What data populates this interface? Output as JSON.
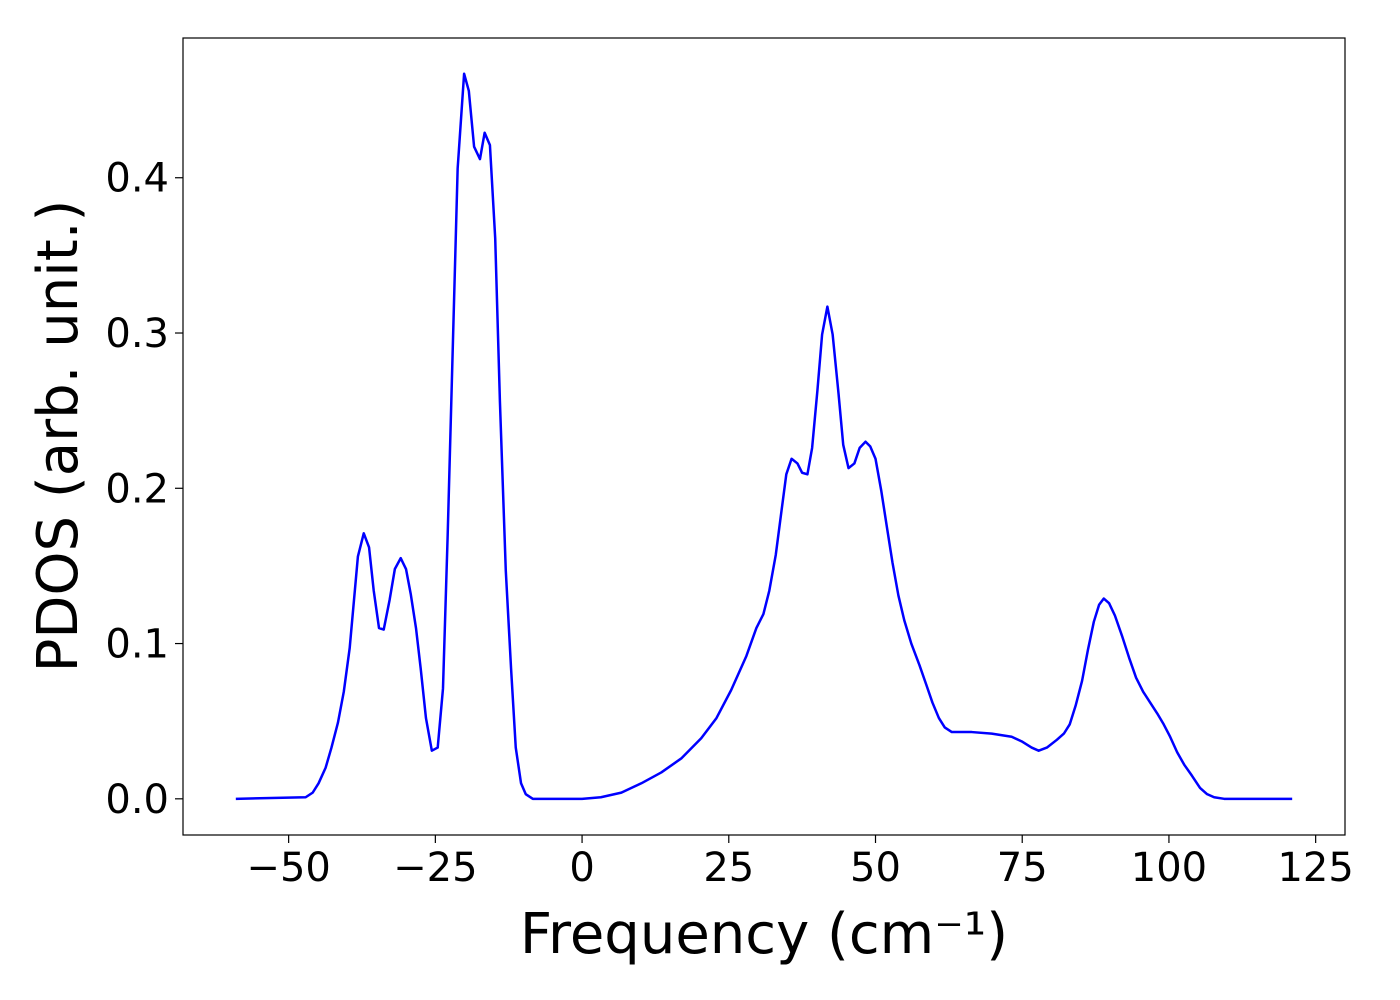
{
  "chart_data": {
    "type": "line",
    "xlabel": "Frequency (cm⁻¹)",
    "ylabel": "PDOS (arb. unit.)",
    "color": "#0000ff",
    "xlim": [
      -68,
      130
    ],
    "ylim": [
      -0.0233,
      0.49
    ],
    "xticks": [
      {
        "value": -50,
        "label": "−50"
      },
      {
        "value": -25,
        "label": "−25"
      },
      0,
      25,
      50,
      75,
      100,
      125
    ],
    "yticks": [
      {
        "value": 0,
        "label": "0.0"
      },
      0.1,
      0.2,
      0.3,
      0.4
    ],
    "x": [
      -59,
      -47.1,
      -45.9,
      -44.9,
      -43.7,
      -42.7,
      -41.6,
      -40.6,
      -39.6,
      -38.2,
      -37.2,
      -36.3,
      -35.5,
      -34.6,
      -33.8,
      -32.8,
      -31.9,
      -30.9,
      -30.0,
      -29.2,
      -28.3,
      -27.5,
      -26.6,
      -25.6,
      -24.6,
      -23.7,
      -22.9,
      -22.0,
      -21.2,
      -20.1,
      -19.3,
      -18.4,
      -17.4,
      -16.6,
      -15.7,
      -14.8,
      -14.0,
      -13.0,
      -12.1,
      -11.3,
      -10.4,
      -9.6,
      -8.4,
      0,
      3.2,
      6.7,
      10.1,
      13.5,
      16.9,
      20.3,
      22.9,
      25.4,
      28.0,
      29.7,
      30.9,
      31.9,
      33.0,
      34.0,
      34.8,
      35.7,
      36.7,
      37.5,
      38.4,
      39.2,
      40.1,
      40.9,
      41.8,
      42.7,
      43.7,
      44.5,
      45.4,
      46.4,
      47.3,
      48.3,
      49.1,
      50.0,
      51.0,
      51.9,
      52.9,
      53.9,
      54.9,
      56.1,
      57.5,
      58.7,
      59.7,
      60.8,
      61.8,
      63.0,
      66.4,
      69.8,
      73.2,
      74.9,
      76.6,
      77.8,
      79.2,
      80.9,
      82.1,
      83.1,
      84.1,
      85.2,
      86.2,
      87.2,
      88.1,
      88.9,
      89.8,
      90.8,
      92.0,
      93.2,
      94.4,
      95.6,
      96.8,
      98.0,
      99.1,
      100.2,
      101.4,
      102.6,
      103.9,
      105.3,
      106.5,
      107.7,
      109.4,
      121
    ],
    "values": [
      0,
      0.001,
      0.004,
      0.01,
      0.02,
      0.033,
      0.049,
      0.069,
      0.097,
      0.156,
      0.171,
      0.162,
      0.134,
      0.11,
      0.109,
      0.128,
      0.148,
      0.155,
      0.148,
      0.132,
      0.11,
      0.084,
      0.052,
      0.031,
      0.033,
      0.071,
      0.17,
      0.295,
      0.406,
      0.467,
      0.456,
      0.42,
      0.412,
      0.429,
      0.421,
      0.361,
      0.256,
      0.147,
      0.084,
      0.033,
      0.01,
      0.003,
      0,
      0,
      0.001,
      0.004,
      0.01,
      0.017,
      0.026,
      0.039,
      0.052,
      0.07,
      0.092,
      0.11,
      0.119,
      0.134,
      0.157,
      0.186,
      0.209,
      0.219,
      0.216,
      0.21,
      0.209,
      0.226,
      0.263,
      0.299,
      0.317,
      0.299,
      0.261,
      0.228,
      0.213,
      0.216,
      0.226,
      0.23,
      0.227,
      0.219,
      0.198,
      0.176,
      0.152,
      0.131,
      0.115,
      0.1,
      0.086,
      0.073,
      0.062,
      0.052,
      0.046,
      0.043,
      0.043,
      0.042,
      0.04,
      0.037,
      0.033,
      0.031,
      0.033,
      0.038,
      0.042,
      0.048,
      0.06,
      0.076,
      0.096,
      0.114,
      0.125,
      0.129,
      0.126,
      0.118,
      0.105,
      0.091,
      0.078,
      0.069,
      0.062,
      0.055,
      0.048,
      0.04,
      0.03,
      0.022,
      0.015,
      0.007,
      0.003,
      0.001,
      0,
      0
    ]
  }
}
